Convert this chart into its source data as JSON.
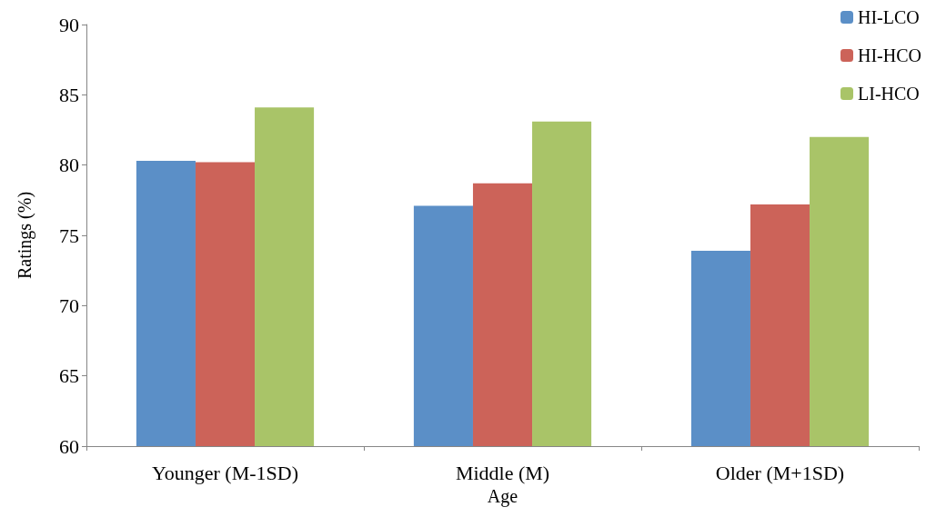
{
  "chart_data": {
    "type": "bar",
    "xlabel": "Age",
    "ylabel": "Ratings (%)",
    "categories": [
      "Younger (M-1SD)",
      "Middle (M)",
      "Older (M+1SD)"
    ],
    "series": [
      {
        "name": "HI-LCO",
        "color": "#5b8fc7",
        "values": [
          80.3,
          77.1,
          73.9
        ]
      },
      {
        "name": "HI-HCO",
        "color": "#cc6359",
        "values": [
          80.2,
          78.7,
          77.2
        ]
      },
      {
        "name": "LI-HCO",
        "color": "#a9c468",
        "values": [
          84.1,
          83.1,
          82.0
        ]
      }
    ],
    "ylim": [
      60,
      90
    ],
    "yticks": [
      60,
      65,
      70,
      75,
      80,
      85,
      90
    ],
    "grid": false,
    "legend": "top right"
  }
}
